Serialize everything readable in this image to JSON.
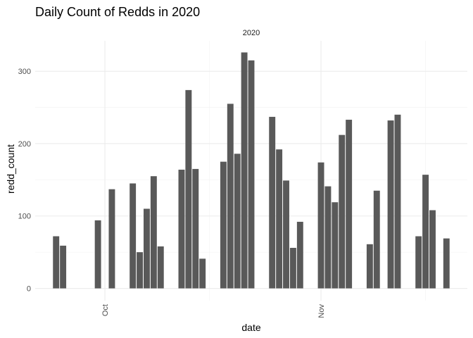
{
  "chart_data": {
    "type": "bar",
    "title": "Daily Count of Redds in 2020",
    "facet_label": "2020",
    "xlabel": "date",
    "ylabel": "redd_count",
    "x_range": [
      "2020-09-21",
      "2020-11-22"
    ],
    "ylim": [
      -17,
      342
    ],
    "y_ticks": [
      0,
      100,
      200,
      300
    ],
    "x_ticks": [
      {
        "label": "Oct",
        "date": "2020-10-01"
      },
      {
        "label": "Nov",
        "date": "2020-11-01"
      }
    ],
    "x_minor_ticks": [
      "2020-09-16",
      "2020-10-16",
      "2020-11-16"
    ],
    "bar_color": "#595959",
    "grid": true,
    "bars": [
      {
        "date": "2020-09-24",
        "value": 72
      },
      {
        "date": "2020-09-25",
        "value": 59
      },
      {
        "date": "2020-09-30",
        "value": 94
      },
      {
        "date": "2020-10-02",
        "value": 137
      },
      {
        "date": "2020-10-05",
        "value": 145
      },
      {
        "date": "2020-10-06",
        "value": 50
      },
      {
        "date": "2020-10-07",
        "value": 110
      },
      {
        "date": "2020-10-08",
        "value": 155
      },
      {
        "date": "2020-10-09",
        "value": 58
      },
      {
        "date": "2020-10-12",
        "value": 164
      },
      {
        "date": "2020-10-13",
        "value": 274
      },
      {
        "date": "2020-10-14",
        "value": 165
      },
      {
        "date": "2020-10-15",
        "value": 41
      },
      {
        "date": "2020-10-18",
        "value": 175
      },
      {
        "date": "2020-10-19",
        "value": 255
      },
      {
        "date": "2020-10-20",
        "value": 186
      },
      {
        "date": "2020-10-21",
        "value": 326
      },
      {
        "date": "2020-10-22",
        "value": 315
      },
      {
        "date": "2020-10-25",
        "value": 237
      },
      {
        "date": "2020-10-26",
        "value": 192
      },
      {
        "date": "2020-10-27",
        "value": 149
      },
      {
        "date": "2020-10-28",
        "value": 56
      },
      {
        "date": "2020-10-29",
        "value": 92
      },
      {
        "date": "2020-11-01",
        "value": 174
      },
      {
        "date": "2020-11-02",
        "value": 141
      },
      {
        "date": "2020-11-03",
        "value": 119
      },
      {
        "date": "2020-11-04",
        "value": 212
      },
      {
        "date": "2020-11-05",
        "value": 233
      },
      {
        "date": "2020-11-08",
        "value": 61
      },
      {
        "date": "2020-11-09",
        "value": 135
      },
      {
        "date": "2020-11-11",
        "value": 232
      },
      {
        "date": "2020-11-12",
        "value": 240
      },
      {
        "date": "2020-11-15",
        "value": 72
      },
      {
        "date": "2020-11-16",
        "value": 157
      },
      {
        "date": "2020-11-17",
        "value": 108
      },
      {
        "date": "2020-11-19",
        "value": 69
      }
    ]
  }
}
